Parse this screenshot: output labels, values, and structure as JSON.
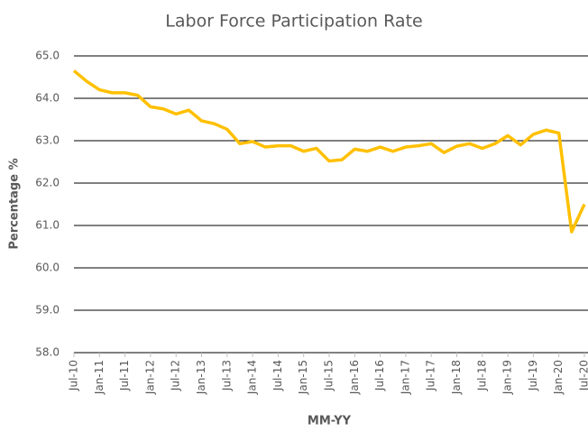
{
  "chart_data": {
    "type": "line",
    "title": "Labor Force Participation Rate",
    "x_label": "MM-YY",
    "y_label": "Percentage %",
    "categories": [
      "Jul-10",
      null,
      "Jan-11",
      null,
      "Jul-11",
      null,
      "Jan-12",
      null,
      "Jul-12",
      null,
      "Jan-13",
      null,
      "Jul-13",
      null,
      "Jan-14",
      null,
      "Jul-14",
      null,
      "Jan-15",
      null,
      "Jul-15",
      null,
      "Jan-16",
      null,
      "Jul-16",
      null,
      "Jan-17",
      null,
      "Jul-17",
      null,
      "Jan-18",
      null,
      "Jul-18",
      null,
      "Jan-19",
      null,
      "Jul-19",
      null,
      "Jan-20",
      null,
      "Jul-20"
    ],
    "series": [
      {
        "name": "Labor Force Participation Rate",
        "color": "#ffc000",
        "values": [
          64.65,
          64.4,
          64.2,
          64.13,
          64.13,
          64.07,
          63.8,
          63.75,
          63.63,
          63.72,
          63.47,
          63.4,
          63.27,
          62.93,
          62.98,
          62.85,
          62.88,
          62.88,
          62.75,
          62.82,
          62.52,
          62.55,
          62.8,
          62.75,
          62.85,
          62.75,
          62.85,
          62.88,
          62.93,
          62.72,
          62.87,
          62.93,
          62.82,
          62.93,
          63.12,
          62.9,
          63.15,
          63.25,
          63.18,
          60.85,
          61.5
        ]
      }
    ],
    "ylim": [
      58,
      65
    ],
    "yticks": [
      {
        "value": 58,
        "label": "58.0"
      },
      {
        "value": 59,
        "label": "59.0"
      },
      {
        "value": 60,
        "label": "60.0"
      },
      {
        "value": 61,
        "label": "61.0"
      },
      {
        "value": 62,
        "label": "62.0"
      },
      {
        "value": 63,
        "label": "63.0"
      },
      {
        "value": 64,
        "label": "64.0"
      },
      {
        "value": 65,
        "label": "65.0"
      }
    ],
    "grid": true
  }
}
